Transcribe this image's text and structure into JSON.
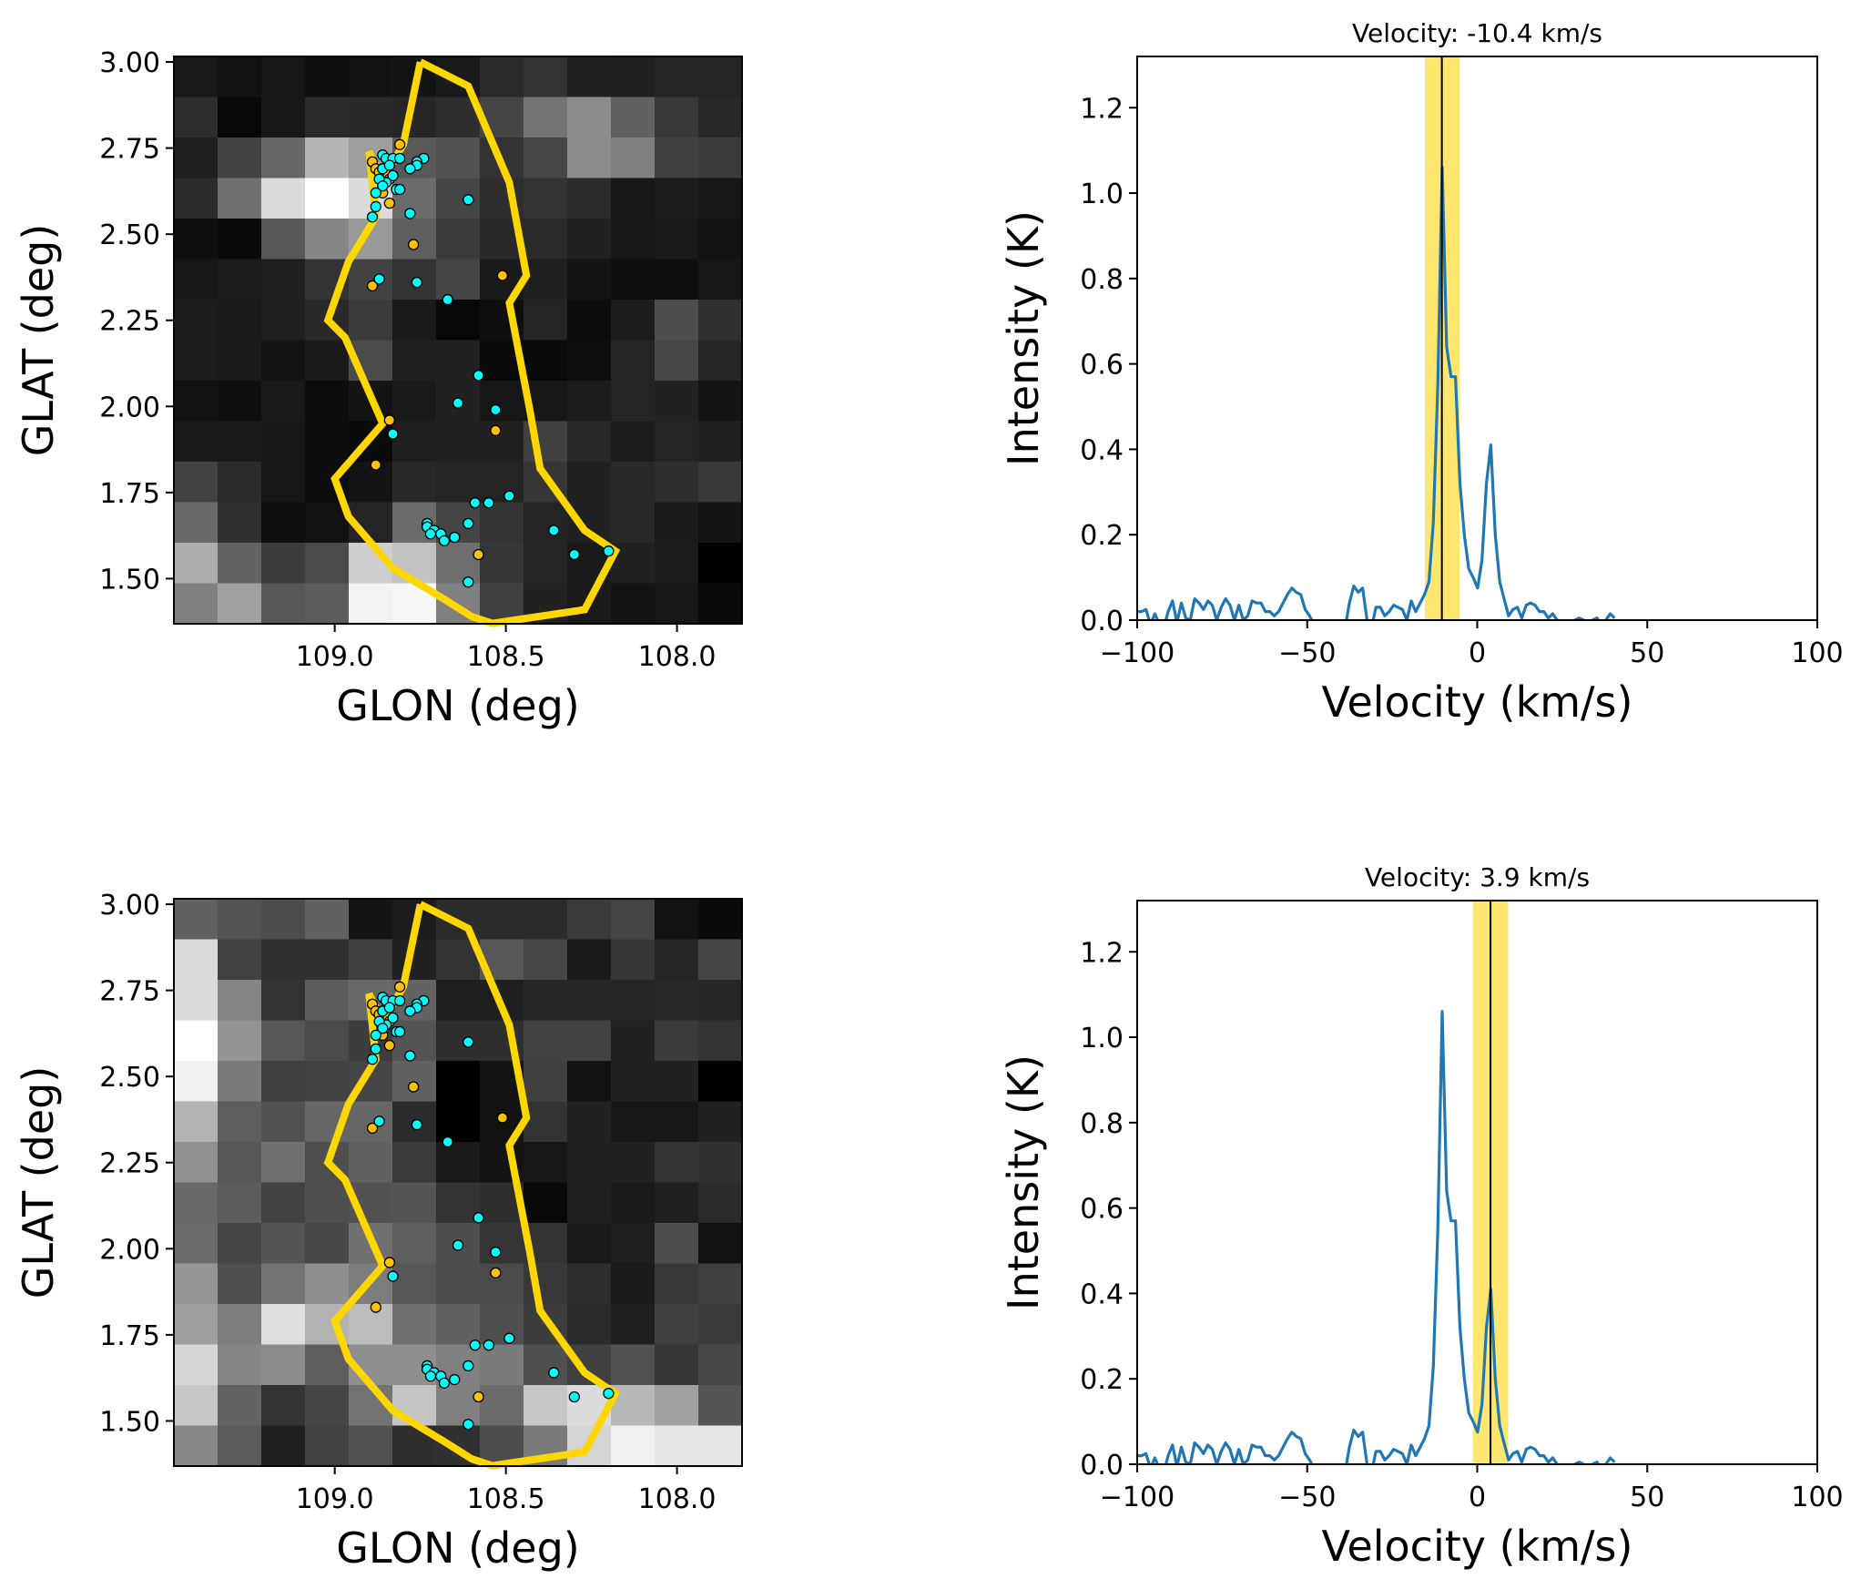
{
  "chart_data": [
    {
      "id": "map-top",
      "type": "heatmap",
      "title": "",
      "xlabel": "GLON (deg)",
      "ylabel": "GLAT (deg)",
      "xlim": [
        109.47,
        107.81
      ],
      "ylim": [
        1.369,
        3.016
      ],
      "xticks": [
        109.0,
        108.5,
        108.0
      ],
      "xtick_labels": [
        "109.0",
        "108.5",
        "108.0"
      ],
      "yticks": [
        3.0,
        2.75,
        2.5,
        2.25,
        2.0,
        1.75,
        1.5
      ],
      "ytick_labels": [
        "3.00",
        "2.75",
        "2.50",
        "2.25",
        "2.00",
        "1.75",
        "1.50"
      ],
      "colormap": "gray",
      "grid_rows_top_to_bottom": [
        [
          0.1,
          0.07,
          0.09,
          0.06,
          0.07,
          0.08,
          0.1,
          0.17,
          0.2,
          0.13,
          0.12,
          0.14,
          0.14
        ],
        [
          0.18,
          0.03,
          0.09,
          0.17,
          0.16,
          0.15,
          0.18,
          0.27,
          0.45,
          0.55,
          0.38,
          0.22,
          0.16
        ],
        [
          0.12,
          0.26,
          0.4,
          0.71,
          0.62,
          0.35,
          0.32,
          0.2,
          0.28,
          0.55,
          0.5,
          0.25,
          0.23
        ],
        [
          0.17,
          0.44,
          0.86,
          1.0,
          0.86,
          0.42,
          0.27,
          0.18,
          0.2,
          0.17,
          0.09,
          0.11,
          0.09
        ],
        [
          0.06,
          0.04,
          0.34,
          0.52,
          0.6,
          0.37,
          0.23,
          0.16,
          0.17,
          0.13,
          0.09,
          0.1,
          0.07
        ],
        [
          0.09,
          0.11,
          0.12,
          0.2,
          0.26,
          0.2,
          0.27,
          0.1,
          0.12,
          0.08,
          0.06,
          0.06,
          0.09
        ],
        [
          0.11,
          0.1,
          0.12,
          0.16,
          0.23,
          0.1,
          0.03,
          0.06,
          0.14,
          0.05,
          0.11,
          0.3,
          0.19
        ],
        [
          0.11,
          0.1,
          0.08,
          0.1,
          0.29,
          0.12,
          0.13,
          0.04,
          0.04,
          0.06,
          0.14,
          0.28,
          0.15
        ],
        [
          0.07,
          0.06,
          0.1,
          0.05,
          0.08,
          0.1,
          0.13,
          0.09,
          0.09,
          0.11,
          0.14,
          0.13,
          0.08
        ],
        [
          0.1,
          0.1,
          0.09,
          0.05,
          0.04,
          0.12,
          0.12,
          0.13,
          0.25,
          0.16,
          0.11,
          0.14,
          0.13
        ],
        [
          0.26,
          0.17,
          0.09,
          0.05,
          0.08,
          0.16,
          0.14,
          0.14,
          0.21,
          0.13,
          0.16,
          0.18,
          0.22
        ],
        [
          0.41,
          0.19,
          0.06,
          0.07,
          0.14,
          0.42,
          0.27,
          0.2,
          0.14,
          0.13,
          0.16,
          0.1,
          0.08
        ],
        [
          0.68,
          0.39,
          0.24,
          0.29,
          0.81,
          0.76,
          0.43,
          0.21,
          0.14,
          0.1,
          0.13,
          0.11,
          0.0
        ],
        [
          0.5,
          0.63,
          0.34,
          0.36,
          0.95,
          0.97,
          0.5,
          0.25,
          0.13,
          0.1,
          0.08,
          0.09,
          0.04
        ]
      ],
      "contour": {
        "color": "#FFD700",
        "glon_glat": [
          [
            108.75,
            3.0
          ],
          [
            108.61,
            2.93
          ],
          [
            108.49,
            2.65
          ],
          [
            108.44,
            2.38
          ],
          [
            108.49,
            2.3
          ],
          [
            108.43,
            1.99
          ],
          [
            108.4,
            1.82
          ],
          [
            108.27,
            1.64
          ],
          [
            108.18,
            1.58
          ],
          [
            108.27,
            1.41
          ],
          [
            108.54,
            1.37
          ],
          [
            108.6,
            1.39
          ],
          [
            108.68,
            1.44
          ],
          [
            108.83,
            1.53
          ],
          [
            108.96,
            1.68
          ],
          [
            109.0,
            1.79
          ],
          [
            108.86,
            1.95
          ],
          [
            108.97,
            2.2
          ],
          [
            109.02,
            2.25
          ],
          [
            108.96,
            2.42
          ],
          [
            108.88,
            2.55
          ],
          [
            108.9,
            2.74
          ],
          [
            108.86,
            2.66
          ],
          [
            108.8,
            2.76
          ],
          [
            108.75,
            3.0
          ]
        ]
      },
      "scatter": [
        {
          "name": "cyan-sources",
          "color": "#00FFFF",
          "points": [
            [
              108.86,
              2.73
            ],
            [
              108.85,
              2.72
            ],
            [
              108.83,
              2.72
            ],
            [
              108.81,
              2.72
            ],
            [
              108.74,
              2.72
            ],
            [
              108.76,
              2.71
            ],
            [
              108.76,
              2.7
            ],
            [
              108.78,
              2.69
            ],
            [
              108.86,
              2.69
            ],
            [
              108.84,
              2.7
            ],
            [
              108.83,
              2.67
            ],
            [
              108.85,
              2.65
            ],
            [
              108.87,
              2.66
            ],
            [
              108.82,
              2.63
            ],
            [
              108.81,
              2.63
            ],
            [
              108.86,
              2.64
            ],
            [
              108.88,
              2.62
            ],
            [
              108.88,
              2.58
            ],
            [
              108.89,
              2.55
            ],
            [
              108.61,
              2.6
            ],
            [
              108.78,
              2.56
            ],
            [
              108.87,
              2.37
            ],
            [
              108.76,
              2.36
            ],
            [
              108.67,
              2.31
            ],
            [
              108.58,
              2.09
            ],
            [
              108.64,
              2.01
            ],
            [
              108.53,
              1.99
            ],
            [
              108.83,
              1.92
            ],
            [
              108.59,
              1.72
            ],
            [
              108.49,
              1.74
            ],
            [
              108.55,
              1.72
            ],
            [
              108.61,
              1.66
            ],
            [
              108.73,
              1.66
            ],
            [
              108.73,
              1.65
            ],
            [
              108.71,
              1.64
            ],
            [
              108.72,
              1.63
            ],
            [
              108.69,
              1.63
            ],
            [
              108.65,
              1.62
            ],
            [
              108.68,
              1.61
            ],
            [
              108.61,
              1.49
            ],
            [
              108.36,
              1.64
            ],
            [
              108.3,
              1.57
            ],
            [
              108.2,
              1.58
            ]
          ]
        },
        {
          "name": "gold-sources",
          "color": "#FFC107",
          "points": [
            [
              108.81,
              2.76
            ],
            [
              108.89,
              2.71
            ],
            [
              108.88,
              2.69
            ],
            [
              108.87,
              2.68
            ],
            [
              108.84,
              2.66
            ],
            [
              108.86,
              2.62
            ],
            [
              108.84,
              2.59
            ],
            [
              108.77,
              2.47
            ],
            [
              108.89,
              2.35
            ],
            [
              108.51,
              2.38
            ],
            [
              108.84,
              1.96
            ],
            [
              108.53,
              1.93
            ],
            [
              108.88,
              1.83
            ],
            [
              108.58,
              1.57
            ]
          ]
        }
      ]
    },
    {
      "id": "spectrum-top",
      "type": "line",
      "title": "Velocity: -10.4 km/s",
      "xlabel": "Velocity (km/s)",
      "ylabel": "Intensity (K)",
      "xlim": [
        -100,
        100
      ],
      "ylim": [
        0,
        1.32
      ],
      "xticks": [
        -100,
        -50,
        0,
        50,
        100
      ],
      "xtick_labels": [
        "−100",
        "−50",
        "0",
        "50",
        "100"
      ],
      "yticks": [
        0.0,
        0.2,
        0.4,
        0.6,
        0.8,
        1.0,
        1.2
      ],
      "ytick_labels": [
        "0.0",
        "0.2",
        "0.4",
        "0.6",
        "0.8",
        "1.0",
        "1.2"
      ],
      "marker_velocity": -10.4,
      "band": [
        -15.4,
        -5.2
      ],
      "band_color": "#FFE566",
      "line_color": "#1f77b4"
    },
    {
      "id": "map-bottom",
      "type": "heatmap",
      "title": "",
      "xlabel": "GLON (deg)",
      "ylabel": "GLAT (deg)",
      "xlim": [
        109.47,
        107.81
      ],
      "ylim": [
        1.369,
        3.016
      ],
      "xticks": [
        109.0,
        108.5,
        108.0
      ],
      "xtick_labels": [
        "109.0",
        "108.5",
        "108.0"
      ],
      "yticks": [
        3.0,
        2.75,
        2.5,
        2.25,
        2.0,
        1.75,
        1.5
      ],
      "ytick_labels": [
        "3.00",
        "2.75",
        "2.50",
        "2.25",
        "2.00",
        "1.75",
        "1.50"
      ],
      "colormap": "gray",
      "grid_rows_top_to_bottom": [
        [
          0.38,
          0.33,
          0.3,
          0.38,
          0.08,
          0.11,
          0.17,
          0.17,
          0.17,
          0.23,
          0.27,
          0.07,
          0.04
        ],
        [
          0.86,
          0.26,
          0.19,
          0.19,
          0.25,
          0.13,
          0.2,
          0.34,
          0.28,
          0.1,
          0.21,
          0.15,
          0.27
        ],
        [
          0.86,
          0.52,
          0.2,
          0.36,
          0.41,
          0.39,
          0.12,
          0.12,
          0.15,
          0.15,
          0.15,
          0.16,
          0.15
        ],
        [
          1.0,
          0.58,
          0.34,
          0.29,
          0.24,
          0.33,
          0.18,
          0.18,
          0.26,
          0.26,
          0.13,
          0.23,
          0.2
        ],
        [
          0.94,
          0.48,
          0.25,
          0.26,
          0.27,
          0.38,
          0.0,
          0.08,
          0.25,
          0.07,
          0.13,
          0.13,
          0.0
        ],
        [
          0.7,
          0.37,
          0.32,
          0.4,
          0.4,
          0.17,
          0.0,
          0.07,
          0.2,
          0.13,
          0.09,
          0.09,
          0.13
        ],
        [
          0.57,
          0.34,
          0.44,
          0.31,
          0.38,
          0.23,
          0.1,
          0.08,
          0.09,
          0.12,
          0.13,
          0.2,
          0.19
        ],
        [
          0.41,
          0.36,
          0.26,
          0.31,
          0.32,
          0.33,
          0.2,
          0.18,
          0.03,
          0.12,
          0.1,
          0.12,
          0.17
        ],
        [
          0.42,
          0.27,
          0.33,
          0.28,
          0.44,
          0.37,
          0.3,
          0.21,
          0.2,
          0.1,
          0.12,
          0.3,
          0.07
        ],
        [
          0.59,
          0.31,
          0.45,
          0.56,
          0.49,
          0.34,
          0.3,
          0.29,
          0.22,
          0.18,
          0.1,
          0.22,
          0.25
        ],
        [
          0.62,
          0.49,
          0.87,
          0.7,
          0.74,
          0.44,
          0.38,
          0.31,
          0.24,
          0.17,
          0.12,
          0.25,
          0.23
        ],
        [
          0.84,
          0.52,
          0.55,
          0.37,
          0.56,
          0.56,
          0.5,
          0.48,
          0.31,
          0.25,
          0.32,
          0.21,
          0.28
        ],
        [
          0.78,
          0.39,
          0.2,
          0.27,
          0.45,
          0.77,
          0.5,
          0.42,
          0.78,
          0.86,
          0.72,
          0.63,
          0.33
        ],
        [
          0.53,
          0.36,
          0.13,
          0.26,
          0.32,
          0.18,
          0.19,
          0.3,
          0.48,
          0.83,
          0.94,
          0.9,
          0.9
        ]
      ],
      "contour_same_as": "map-top",
      "scatter_same_as": "map-top"
    },
    {
      "id": "spectrum-bottom",
      "type": "line",
      "title": "Velocity: 3.9 km/s",
      "xlabel": "Velocity (km/s)",
      "ylabel": "Intensity (K)",
      "xlim": [
        -100,
        100
      ],
      "ylim": [
        0,
        1.32
      ],
      "xticks": [
        -100,
        -50,
        0,
        50,
        100
      ],
      "xtick_labels": [
        "−100",
        "−50",
        "0",
        "50",
        "100"
      ],
      "yticks": [
        0.0,
        0.2,
        0.4,
        0.6,
        0.8,
        1.0,
        1.2
      ],
      "ytick_labels": [
        "0.0",
        "0.2",
        "0.4",
        "0.6",
        "0.8",
        "1.0",
        "1.2"
      ],
      "marker_velocity": 3.9,
      "band": [
        -1.3,
        9.1
      ],
      "band_color": "#FFE566",
      "line_color": "#1f77b4"
    }
  ],
  "spectrum": {
    "velocity": [
      -100,
      -98.7,
      -97.4,
      -96.1,
      -94.8,
      -93.5,
      -92.2,
      -90.9,
      -89.6,
      -88.3,
      -87,
      -85.7,
      -84.4,
      -83.1,
      -81.8,
      -80.5,
      -79.2,
      -77.9,
      -76.6,
      -75.3,
      -74,
      -72.7,
      -71.4,
      -70.1,
      -68.8,
      -67.5,
      -66.2,
      -64.9,
      -63.6,
      -62.3,
      -61,
      -59.7,
      -58.4,
      -57.1,
      -55.8,
      -54.5,
      -53.2,
      -51.9,
      -50.6,
      -49.3,
      -48,
      -46.7,
      -45.4,
      -44.1,
      -42.8,
      -41.5,
      -40.2,
      -38.9,
      -37.6,
      -36.3,
      -35,
      -33.7,
      -32.4,
      -31.1,
      -29.8,
      -28.5,
      -27.2,
      -25.9,
      -24.6,
      -23.3,
      -22,
      -20.7,
      -19.4,
      -18.1,
      -16.8,
      -15.5,
      -14.2,
      -12.9,
      -11.6,
      -10.3,
      -9,
      -7.7,
      -6.4,
      -5.1,
      -3.8,
      -2.5,
      -1.2,
      0.1,
      1.4,
      2.7,
      4,
      5.3,
      6.6,
      7.9,
      9.2,
      10.5,
      11.8,
      13.1,
      14.4,
      15.7,
      17,
      18.3,
      19.6,
      20.9,
      22.2,
      23.5,
      24.8,
      26.1,
      27.4,
      28.7,
      30,
      31.3,
      32.6,
      33.9,
      35.2,
      36.5,
      37.8,
      39.1,
      40.4
    ],
    "intensity": [
      0.02,
      0.02,
      0.025,
      -0.01,
      0.015,
      -0.01,
      -0.02,
      0.02,
      0.045,
      -0.005,
      0.04,
      0.005,
      0.0,
      0.05,
      0.04,
      0.025,
      0.045,
      0.035,
      0.0,
      0.03,
      0.05,
      0.035,
      0.0,
      0.035,
      0.0,
      0.01,
      0.045,
      0.04,
      0.04,
      0.02,
      0.02,
      0.01,
      0.02,
      0.04,
      0.06,
      0.075,
      0.065,
      0.06,
      0.025,
      0.01,
      -0.01,
      -0.05,
      -0.08,
      -0.09,
      -0.07,
      -0.05,
      -0.04,
      -0.02,
      0.04,
      0.08,
      0.065,
      0.075,
      0.0,
      -0.02,
      0.03,
      0.03,
      0.01,
      0.02,
      0.035,
      0.03,
      0.025,
      0.0,
      0.045,
      0.02,
      0.04,
      0.06,
      0.09,
      0.23,
      0.55,
      1.06,
      0.64,
      0.57,
      0.57,
      0.32,
      0.2,
      0.12,
      0.1,
      0.075,
      0.14,
      0.32,
      0.41,
      0.2,
      0.09,
      0.05,
      0.01,
      0.025,
      0.03,
      0.005,
      0.035,
      0.04,
      0.035,
      0.02,
      0.02,
      0.005,
      0.015,
      0.0,
      -0.02,
      -0.03,
      -0.01,
      0.0,
      0.005,
      0.0,
      -0.01,
      0.0,
      0.005,
      -0.01,
      0.0,
      0.015,
      0.005
    ]
  }
}
